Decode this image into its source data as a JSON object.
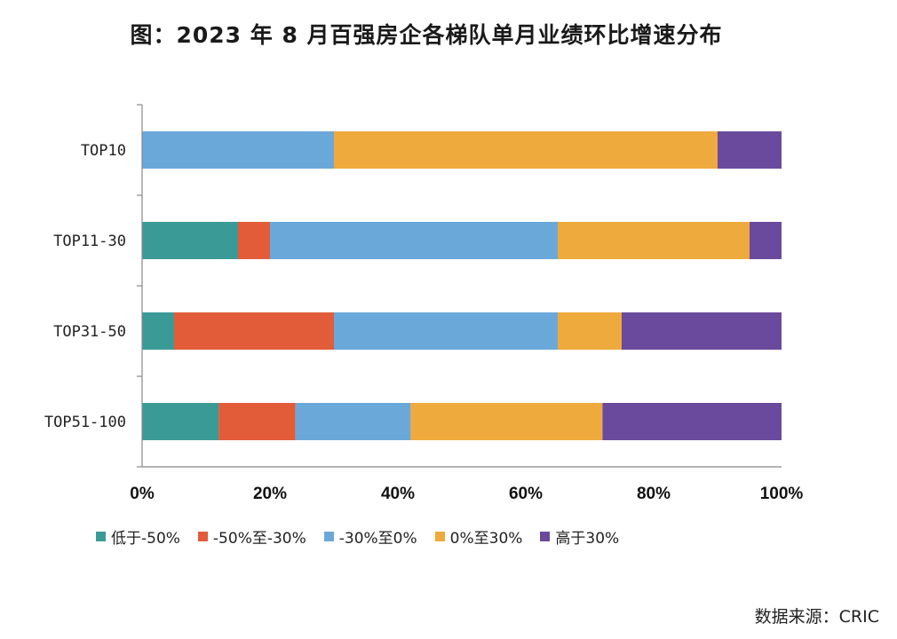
{
  "chart_data": {
    "type": "bar",
    "orientation": "horizontal",
    "stacked": true,
    "title": "图：2023 年 8 月百强房企各梯队单月业绩环比增速分布",
    "categories": [
      "TOP10",
      "TOP11-30",
      "TOP31-50",
      "TOP51-100"
    ],
    "series": [
      {
        "name": "低于-50%",
        "color": "#3a9a96",
        "values": [
          0,
          15,
          5,
          12
        ]
      },
      {
        "name": "-50%至-30%",
        "color": "#e25c3a",
        "values": [
          0,
          5,
          25,
          12
        ]
      },
      {
        "name": "-30%至0%",
        "color": "#6aa8da",
        "values": [
          30,
          45,
          35,
          18
        ]
      },
      {
        "name": "0%至30%",
        "color": "#eeaa3c",
        "values": [
          60,
          30,
          10,
          30
        ]
      },
      {
        "name": "高于30%",
        "color": "#6a4a9c",
        "values": [
          10,
          5,
          25,
          28
        ]
      }
    ],
    "xlim": [
      0,
      100
    ],
    "xticks": [
      "0%",
      "20%",
      "40%",
      "60%",
      "80%",
      "100%"
    ],
    "legend_position": "bottom",
    "grid": false
  },
  "source": "数据来源：CRIC"
}
